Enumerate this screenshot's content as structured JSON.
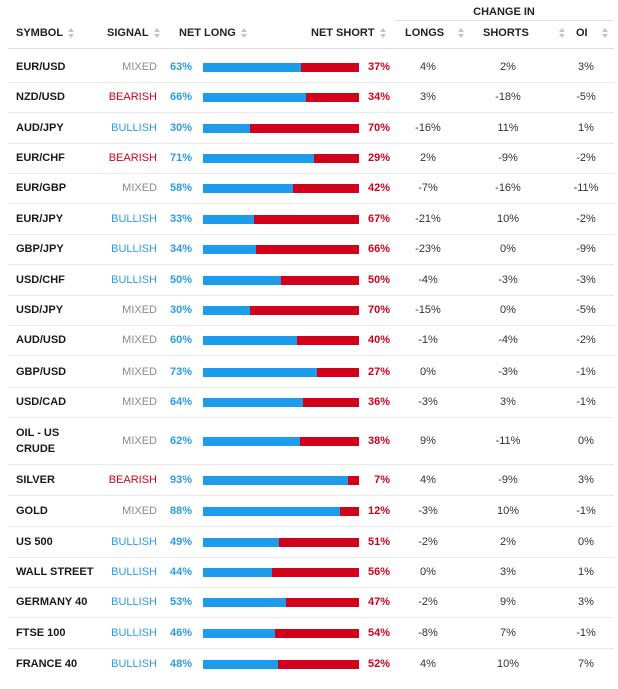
{
  "table": {
    "group_header": "CHANGE IN",
    "columns": {
      "symbol": "SYMBOL",
      "signal": "SIGNAL",
      "net_long": "NET LONG",
      "net_short": "NET SHORT",
      "longs": "LONGS",
      "shorts": "SHORTS",
      "oi": "OI"
    },
    "colors": {
      "long": "#1e9bea",
      "short": "#d0021b",
      "bullish": "#2b9ce6",
      "bearish": "#d0021b",
      "mixed": "#8a8a8a"
    },
    "rows": [
      {
        "symbol": "EUR/USD",
        "signal": "MIXED",
        "net_long": "63%",
        "net_short": "37%",
        "long_fraction": 0.63,
        "longs": "4%",
        "shorts": "2%",
        "oi": "3%"
      },
      {
        "symbol": "NZD/USD",
        "signal": "BEARISH",
        "net_long": "66%",
        "net_short": "34%",
        "long_fraction": 0.66,
        "longs": "3%",
        "shorts": "-18%",
        "oi": "-5%"
      },
      {
        "symbol": "AUD/JPY",
        "signal": "BULLISH",
        "net_long": "30%",
        "net_short": "70%",
        "long_fraction": 0.3,
        "longs": "-16%",
        "shorts": "11%",
        "oi": "1%"
      },
      {
        "symbol": "EUR/CHF",
        "signal": "BEARISH",
        "net_long": "71%",
        "net_short": "29%",
        "long_fraction": 0.71,
        "longs": "2%",
        "shorts": "-9%",
        "oi": "-2%"
      },
      {
        "symbol": "EUR/GBP",
        "signal": "MIXED",
        "net_long": "58%",
        "net_short": "42%",
        "long_fraction": 0.58,
        "longs": "-7%",
        "shorts": "-16%",
        "oi": "-11%"
      },
      {
        "symbol": "EUR/JPY",
        "signal": "BULLISH",
        "net_long": "33%",
        "net_short": "67%",
        "long_fraction": 0.33,
        "longs": "-21%",
        "shorts": "10%",
        "oi": "-2%"
      },
      {
        "symbol": "GBP/JPY",
        "signal": "BULLISH",
        "net_long": "34%",
        "net_short": "66%",
        "long_fraction": 0.34,
        "longs": "-23%",
        "shorts": "0%",
        "oi": "-9%"
      },
      {
        "symbol": "USD/CHF",
        "signal": "BULLISH",
        "net_long": "50%",
        "net_short": "50%",
        "long_fraction": 0.5,
        "longs": "-4%",
        "shorts": "-3%",
        "oi": "-3%"
      },
      {
        "symbol": "USD/JPY",
        "signal": "MIXED",
        "net_long": "30%",
        "net_short": "70%",
        "long_fraction": 0.3,
        "longs": "-15%",
        "shorts": "0%",
        "oi": "-5%"
      },
      {
        "symbol": "AUD/USD",
        "signal": "MIXED",
        "net_long": "60%",
        "net_short": "40%",
        "long_fraction": 0.6,
        "longs": "-1%",
        "shorts": "-4%",
        "oi": "-2%"
      },
      {
        "symbol": "GBP/USD",
        "signal": "MIXED",
        "net_long": "73%",
        "net_short": "27%",
        "long_fraction": 0.73,
        "longs": "0%",
        "shorts": "-3%",
        "oi": "-1%"
      },
      {
        "symbol": "USD/CAD",
        "signal": "MIXED",
        "net_long": "64%",
        "net_short": "36%",
        "long_fraction": 0.64,
        "longs": "-3%",
        "shorts": "3%",
        "oi": "-1%"
      },
      {
        "symbol": "OIL - US CRUDE",
        "signal": "MIXED",
        "net_long": "62%",
        "net_short": "38%",
        "long_fraction": 0.62,
        "longs": "9%",
        "shorts": "-11%",
        "oi": "0%"
      },
      {
        "symbol": "SILVER",
        "signal": "BEARISH",
        "net_long": "93%",
        "net_short": "7%",
        "long_fraction": 0.93,
        "longs": "4%",
        "shorts": "-9%",
        "oi": "3%"
      },
      {
        "symbol": "GOLD",
        "signal": "MIXED",
        "net_long": "88%",
        "net_short": "12%",
        "long_fraction": 0.88,
        "longs": "-3%",
        "shorts": "10%",
        "oi": "-1%"
      },
      {
        "symbol": "US 500",
        "signal": "BULLISH",
        "net_long": "49%",
        "net_short": "51%",
        "long_fraction": 0.49,
        "longs": "-2%",
        "shorts": "2%",
        "oi": "0%"
      },
      {
        "symbol": "WALL STREET",
        "signal": "BULLISH",
        "net_long": "44%",
        "net_short": "56%",
        "long_fraction": 0.44,
        "longs": "0%",
        "shorts": "3%",
        "oi": "1%"
      },
      {
        "symbol": "GERMANY 40",
        "signal": "BULLISH",
        "net_long": "53%",
        "net_short": "47%",
        "long_fraction": 0.53,
        "longs": "-2%",
        "shorts": "9%",
        "oi": "3%"
      },
      {
        "symbol": "FTSE 100",
        "signal": "BULLISH",
        "net_long": "46%",
        "net_short": "54%",
        "long_fraction": 0.46,
        "longs": "-8%",
        "shorts": "7%",
        "oi": "-1%"
      },
      {
        "symbol": "FRANCE 40",
        "signal": "BULLISH",
        "net_long": "48%",
        "net_short": "52%",
        "long_fraction": 0.48,
        "longs": "4%",
        "shorts": "10%",
        "oi": "7%"
      }
    ]
  }
}
